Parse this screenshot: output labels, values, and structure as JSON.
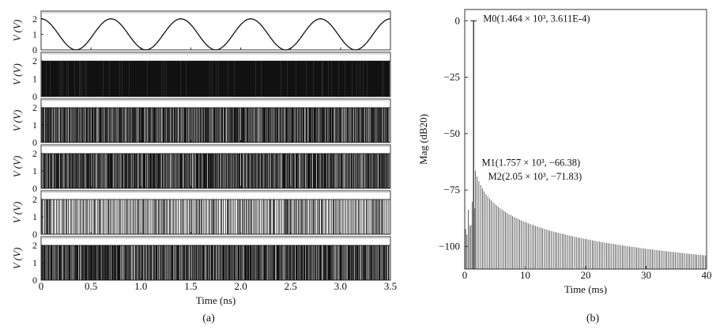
{
  "chart_data": [
    {
      "type": "line",
      "panel": "(a)",
      "xlabel": "Time (ns)",
      "xlim": [
        0,
        3.5
      ],
      "xticks": [
        "0",
        "0.5",
        "1.0",
        "1.5",
        "2.0",
        "2.5",
        "3.0",
        "3.5"
      ],
      "ylabel": "V (V)",
      "ylim": [
        0,
        2.5
      ],
      "yticks": [
        "0",
        "1",
        "2"
      ],
      "subplots": [
        {
          "kind": "sine",
          "amplitude": 1.0,
          "offset": 1.0,
          "period_ns": 0.7,
          "phase_deg": 90
        },
        {
          "kind": "digital",
          "low": 0,
          "high": 2.0,
          "density": "very high"
        },
        {
          "kind": "digital",
          "low": 0,
          "high": 2.0,
          "density": "high"
        },
        {
          "kind": "digital",
          "low": 0,
          "high": 2.0,
          "density": "high"
        },
        {
          "kind": "digital",
          "low": 0,
          "high": 2.0,
          "density": "medium"
        },
        {
          "kind": "digital",
          "low": 0,
          "high": 2.0,
          "density": "high"
        }
      ]
    },
    {
      "type": "bar",
      "panel": "(b)",
      "xlabel": "Time (ms)",
      "xlim": [
        0,
        40
      ],
      "xticks": [
        "0",
        "10",
        "20",
        "30",
        "40"
      ],
      "ylabel": "Mag (dB20)",
      "ylim": [
        -110,
        5
      ],
      "yticks": [
        "0",
        "−25",
        "−50",
        "−75",
        "−100"
      ],
      "fundamental": {
        "x": 1.464,
        "y": 0
      },
      "spectrum_floor": {
        "start_x": 1.757,
        "start_y": -66.38,
        "end_x": 40,
        "end_y": -104
      },
      "markers": [
        {
          "label": "M0(1.464 × 10³, 3.611E-4)",
          "x": 1.464,
          "y": 0.0003611
        },
        {
          "label": "M1(1.757 × 10³, −66.38)",
          "x": 1.757,
          "y": -66.38
        },
        {
          "label": "M2(2.05 × 10³, −71.83)",
          "x": 2.05,
          "y": -71.83
        }
      ]
    }
  ]
}
